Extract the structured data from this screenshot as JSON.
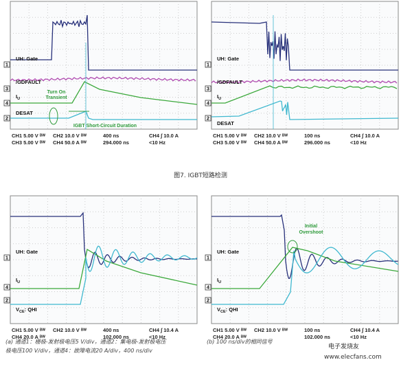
{
  "figure_caption": "图7. IGBT短路检测",
  "panels": [
    {
      "channels": [
        {
          "number": "1",
          "label": "UH: Gate"
        },
        {
          "number": "3",
          "label": "/GDFAULT"
        },
        {
          "number": "4",
          "label": "I",
          "sub": "U"
        },
        {
          "number": "2",
          "label": "DESAT"
        }
      ],
      "annotations": [
        "Turn On",
        "Transient",
        "IGBT Short-Circuit Duration"
      ],
      "info": [
        [
          "CH1 5.00 V ᴮᵂ",
          "CH2 10.0 V ᴮᵂ",
          "400 ns",
          "CH4 ∫ 10.0 A"
        ],
        [
          "CH3 5.00 V ᴮᵂ",
          "CH4 50.0 A ᴮᵂ",
          "294.000 ns",
          "<10 Hz"
        ]
      ]
    },
    {
      "channels": [
        {
          "number": "1",
          "label": "UH: Gate"
        },
        {
          "number": "3",
          "label": "/GDFAULT"
        },
        {
          "number": "4",
          "label": "I",
          "sub": "U"
        },
        {
          "number": "2",
          "label": "DESAT"
        }
      ],
      "annotations": [],
      "info": [
        [
          "CH1 5.00 V ᴮᵂ",
          "CH2 10.0 V ᴮᵂ",
          "100 ns",
          "CH4 ∫ 10.0 A"
        ],
        [
          "CH3 5.00 V ᴮᵂ",
          "CH4 50.0 A ᴮᵂ",
          "296.000 ns",
          "<10 Hz"
        ]
      ]
    },
    {
      "channels": [
        {
          "number": "1",
          "label": "UH: Gate"
        },
        {
          "number": "4",
          "label": "I",
          "sub": "U"
        },
        {
          "number": "2",
          "label": "V",
          "sub": "CE",
          "suffix": ": QHI"
        }
      ],
      "annotations": [],
      "info": [
        [
          "CH1 5.00 V ᴮᵂ",
          "CH2 10.0 V ᴮᵂ",
          "400 ns",
          "CH4 ∫ 10.4 A"
        ],
        [
          "CH4 20.0 A ᴮᵂ",
          "",
          "102.000 ns",
          "<10 Hz"
        ]
      ]
    },
    {
      "channels": [
        {
          "number": "1",
          "label": "UH: Gate"
        },
        {
          "number": "4",
          "label": "I",
          "sub": "U"
        },
        {
          "number": "2",
          "label": "V",
          "sub": "CE",
          "suffix": ": QHI"
        }
      ],
      "annotations": [
        "Initial",
        "Overshoot"
      ],
      "info": [
        [
          "CH1 5.00 V ᴮᵂ",
          "CH2 10.0 V ᴮᵂ",
          "100 ns",
          "CH4 ∫ 10.4 A"
        ],
        [
          "CH4 20.0 A ᴮᵂ",
          "",
          "102.000 ns",
          "<10 Hz"
        ]
      ]
    }
  ],
  "captions": [
    "(a) 通道1：栅极-发射极电压5 V/div，通道2：集电极-发射极电压",
    "极电压100 V/div，通道4：故障电流20 A/div，400 ns/div",
    "(b) 100 ns/div的相同信号"
  ],
  "watermark": [
    "电子发烧友",
    "www.elecfans.com"
  ]
}
